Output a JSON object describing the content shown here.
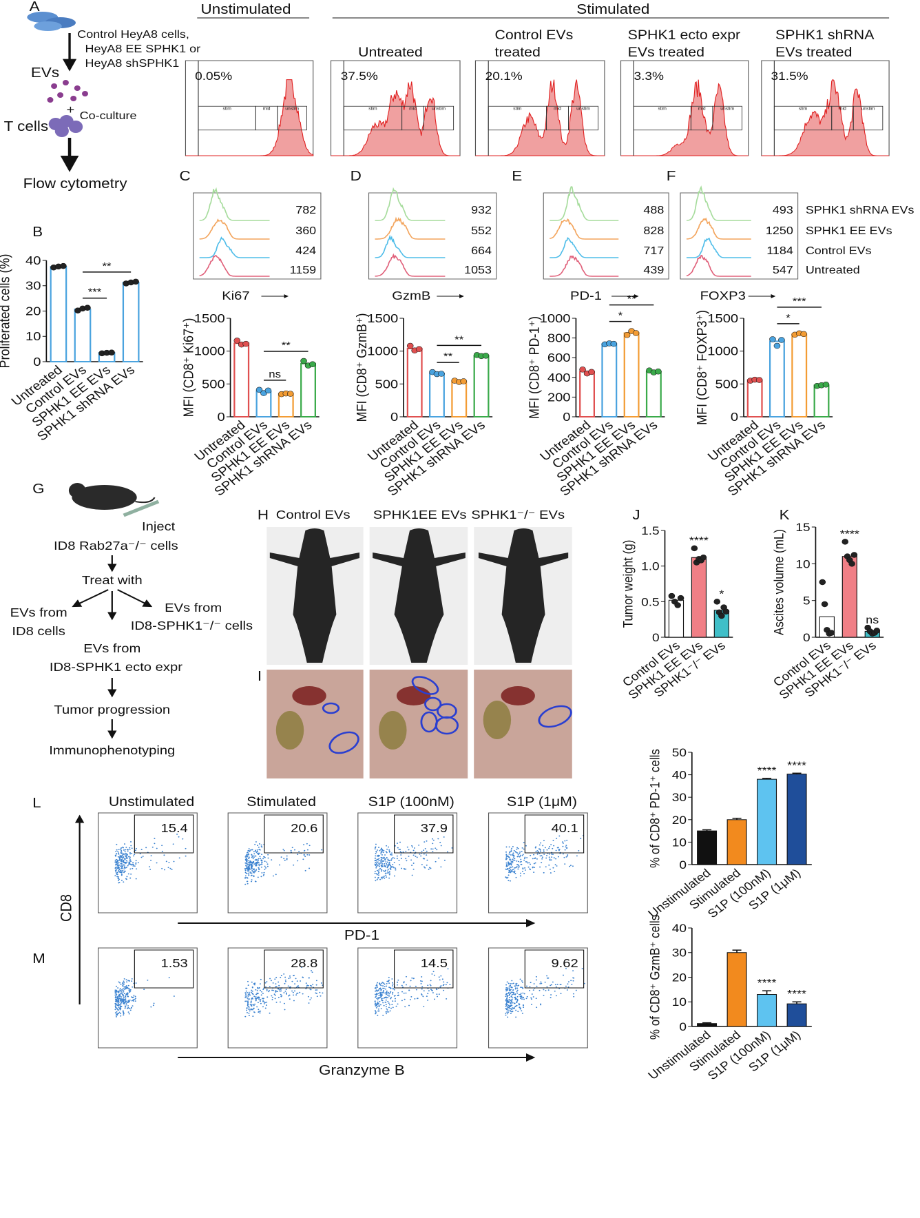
{
  "panel_labels": [
    "A",
    "B",
    "C",
    "D",
    "E",
    "F",
    "G",
    "H",
    "I",
    "J",
    "K",
    "L",
    "M"
  ],
  "panel_a": {
    "schematic": [
      "Control HeyA8 cells,",
      "HeyA8 EE SPHK1 or",
      "HeyA8 shSPHK1",
      "EVs",
      "+",
      "Co-culture",
      "T cells",
      "Flow cytometry"
    ],
    "groups": [
      "Unstimulated",
      "Stimulated"
    ],
    "gate_names": [
      "stim",
      "mid",
      "unstim"
    ],
    "histograms": [
      {
        "gate": "0.05%"
      },
      {
        "title": [
          "Untreated"
        ],
        "gate": "37.5%"
      },
      {
        "title": [
          "Control EVs",
          "treated"
        ],
        "gate": "20.1%"
      },
      {
        "title": [
          "SPHK1 ecto expr",
          "EVs treated"
        ],
        "gate": "3.3%"
      },
      {
        "title": [
          "SPHK1 shRNA",
          "EVs treated"
        ],
        "gate": "31.5%"
      }
    ]
  },
  "panel_cf": {
    "series": [
      {
        "name": "SPHK1 shRNA EVs",
        "color": "#a6dc9c"
      },
      {
        "name": "SPHK1 EE EVs",
        "color": "#f3a45c"
      },
      {
        "name": "Control EVs",
        "color": "#4fbde9"
      },
      {
        "name": "Untreated",
        "color": "#e0607a"
      }
    ],
    "panels": [
      {
        "marker": "Ki67",
        "values": [
          782,
          360,
          424,
          1159
        ]
      },
      {
        "marker": "GzmB",
        "values": [
          932,
          552,
          664,
          1053
        ]
      },
      {
        "marker": "PD-1",
        "values": [
          488,
          828,
          717,
          439
        ]
      },
      {
        "marker": "FOXP3",
        "values": [
          493,
          1250,
          1184,
          547
        ]
      }
    ]
  },
  "panel_g": {
    "inject": "Inject",
    "cells": "ID8 Rab27a⁻/⁻ cells",
    "treat": "Treat with",
    "left": [
      "EVs from",
      "ID8 cells"
    ],
    "right": [
      "EVs from",
      "ID8-SPHK1⁻/⁻ cells"
    ],
    "middle": [
      "EVs from",
      "ID8-SPHK1 ecto expr"
    ],
    "progression": "Tumor progression",
    "final": "Immunophenotyping"
  },
  "panel_h": {
    "columns": [
      "Control EVs",
      "SPHK1EE EVs",
      "SPHK1⁻/⁻ EVs"
    ]
  },
  "flow": {
    "columns": [
      "Unstimulated",
      "Stimulated",
      "S1P (100nM)",
      "S1P (1μM)"
    ],
    "y_axis": "CD8",
    "rows": [
      {
        "x_axis": "PD-1",
        "values": [
          15.4,
          20.6,
          37.9,
          40.1
        ]
      },
      {
        "x_axis": "Granzyme B",
        "values": [
          1.53,
          28.8,
          14.5,
          9.62
        ]
      }
    ]
  },
  "chart_data": [
    {
      "type": "bar",
      "style": "outline",
      "ylabel": "Proliferated cells (%)",
      "categories": [
        "Untreated",
        "Control EVs",
        "SPHK1 EE EVs",
        "SPHK1 shRNA EVs"
      ],
      "values": [
        37.5,
        20.7,
        3.5,
        31.3
      ],
      "colors": [
        "#4aa3df",
        "#4aa3df",
        "#4aa3df",
        "#4aa3df"
      ],
      "point_color": "#222",
      "points": [
        [
          37.2,
          37.6,
          37.8
        ],
        [
          20.2,
          21,
          21.3
        ],
        [
          3.3,
          3.5,
          3.6
        ],
        [
          30.9,
          31.3,
          31.6
        ]
      ],
      "ylim": [
        0,
        40
      ],
      "yticks": [
        0,
        10,
        20,
        30,
        40
      ],
      "comparisons": [
        {
          "label": "***",
          "between": [
            "Control EVs",
            "SPHK1 EE EVs"
          ]
        },
        {
          "label": "**",
          "between": [
            "Control EVs",
            "SPHK1 shRNA EVs"
          ]
        }
      ]
    },
    {
      "type": "bar",
      "style": "outline",
      "ylabel": "MFI (CD8⁺ Ki67⁺)",
      "categories": [
        "Untreated",
        "Control EVs",
        "SPHK1 EE EVs",
        "SPHK1 shRNA EVs"
      ],
      "values": [
        1120,
        390,
        350,
        810
      ],
      "colors": [
        "#e05050",
        "#4aa3df",
        "#f39c34",
        "#3aaa4a"
      ],
      "points": [
        [
          1160,
          1100,
          1110
        ],
        [
          410,
          360,
          400
        ],
        [
          345,
          355,
          350
        ],
        [
          850,
          780,
          800
        ]
      ],
      "ylim": [
        0,
        1500
      ],
      "yticks": [
        0,
        500,
        1000,
        1500
      ],
      "comparisons": [
        {
          "label": "ns",
          "between": [
            "Control EVs",
            "SPHK1 EE EVs"
          ]
        },
        {
          "label": "**",
          "between": [
            "Control EVs",
            "SPHK1 shRNA EVs"
          ]
        }
      ]
    },
    {
      "type": "bar",
      "style": "outline",
      "ylabel": "MFI (CD8⁺ GzmB⁺)",
      "categories": [
        "Untreated",
        "Control EVs",
        "SPHK1 EE EVs",
        "SPHK1 shRNA EVs"
      ],
      "values": [
        1040,
        660,
        540,
        930
      ],
      "colors": [
        "#e05050",
        "#4aa3df",
        "#f39c34",
        "#3aaa4a"
      ],
      "points": [
        [
          1080,
          1010,
          1030
        ],
        [
          680,
          650,
          655
        ],
        [
          550,
          530,
          540
        ],
        [
          940,
          925,
          930
        ]
      ],
      "ylim": [
        0,
        1500
      ],
      "yticks": [
        0,
        500,
        1000,
        1500
      ],
      "comparisons": [
        {
          "label": "**",
          "between": [
            "Control EVs",
            "SPHK1 EE EVs"
          ]
        },
        {
          "label": "**",
          "between": [
            "Control EVs",
            "SPHK1 shRNA EVs"
          ]
        }
      ]
    },
    {
      "type": "bar",
      "style": "outline",
      "ylabel": "MFI (CD8⁺ PD-1⁺)",
      "categories": [
        "Untreated",
        "Control EVs",
        "SPHK1 EE EVs",
        "SPHK1 shRNA EVs"
      ],
      "values": [
        460,
        740,
        850,
        460
      ],
      "colors": [
        "#e05050",
        "#4aa3df",
        "#f39c34",
        "#3aaa4a"
      ],
      "points": [
        [
          480,
          440,
          455
        ],
        [
          735,
          745,
          740
        ],
        [
          830,
          870,
          850
        ],
        [
          470,
          450,
          460
        ]
      ],
      "ylim": [
        0,
        1000
      ],
      "yticks": [
        0,
        200,
        400,
        600,
        800,
        1000
      ],
      "comparisons": [
        {
          "label": "*",
          "between": [
            "Control EVs",
            "SPHK1 EE EVs"
          ]
        },
        {
          "label": "**",
          "between": [
            "Control EVs",
            "SPHK1 shRNA EVs"
          ]
        }
      ]
    },
    {
      "type": "bar",
      "style": "outline",
      "ylabel": "MFI (CD8⁺ FOXP3⁺)",
      "categories": [
        "Untreated",
        "Control EVs",
        "SPHK1 EE EVs",
        "SPHK1 shRNA EVs"
      ],
      "values": [
        560,
        1150,
        1260,
        480
      ],
      "colors": [
        "#e05050",
        "#4aa3df",
        "#f39c34",
        "#3aaa4a"
      ],
      "points": [
        [
          550,
          565,
          560
        ],
        [
          1180,
          1080,
          1170
        ],
        [
          1250,
          1270,
          1260
        ],
        [
          470,
          480,
          490
        ]
      ],
      "ylim": [
        0,
        1500
      ],
      "yticks": [
        0,
        500,
        1000,
        1500
      ],
      "comparisons": [
        {
          "label": "*",
          "between": [
            "Control EVs",
            "SPHK1 EE EVs"
          ]
        },
        {
          "label": "***",
          "between": [
            "Control EVs",
            "SPHK1 shRNA EVs"
          ]
        }
      ]
    },
    {
      "type": "bar",
      "style": "filled",
      "ylabel": "Tumor weight (g)",
      "categories": [
        "Control EVs",
        "SPHK1 EE EVs",
        "SPHK1⁻/⁻ EVs"
      ],
      "values": [
        0.52,
        1.12,
        0.38
      ],
      "colors": [
        "#ffffff",
        "#f07f86",
        "#40bfc8"
      ],
      "point_color": "#222",
      "points": [
        [
          0.58,
          0.5,
          0.45,
          0.55
        ],
        [
          1.25,
          1.05,
          1.1,
          1.08,
          1.12
        ],
        [
          0.5,
          0.35,
          0.3,
          0.42,
          0.36
        ]
      ],
      "ylim": [
        0,
        1.5
      ],
      "yticks": [
        0,
        0.5,
        {
          "value": 1,
          "label": "1.0"
        },
        1.5
      ],
      "annotations": [
        null,
        "****",
        "*"
      ]
    },
    {
      "type": "bar",
      "style": "filled",
      "ylabel": "Ascites volume (mL)",
      "categories": [
        "Control EVs",
        "SPHK1 EE EVs",
        "SPHK1⁻/⁻ EVs"
      ],
      "values": [
        2.8,
        11,
        0.8
      ],
      "colors": [
        "#ffffff",
        "#f07f86",
        "#40bfc8"
      ],
      "point_color": "#222",
      "points": [
        [
          7.5,
          4.5,
          1,
          0.5,
          0.6
        ],
        [
          13,
          11,
          10.5,
          10,
          11.2
        ],
        [
          1.3,
          0.8,
          0.5,
          0.6,
          0.9
        ]
      ],
      "ylim": [
        0,
        15
      ],
      "yticks": [
        0,
        5,
        10,
        15
      ],
      "annotations": [
        null,
        "****",
        "ns"
      ]
    },
    {
      "type": "bar",
      "style": "filled",
      "ylabel": "% of CD8⁺ PD-1⁺ cells",
      "categories": [
        "Unstimulated",
        "Stimulated",
        "S1P (100nM)",
        "S1P (1μM)"
      ],
      "values": [
        15,
        20,
        38,
        40.3
      ],
      "errors": [
        0.5,
        0.6,
        0.4,
        0.4
      ],
      "colors": [
        "#111111",
        "#f28a1e",
        "#5ec3f0",
        "#1f4e9a"
      ],
      "ylim": [
        0,
        50
      ],
      "yticks": [
        0,
        10,
        20,
        30,
        40,
        50
      ],
      "annotations": [
        null,
        null,
        "****",
        "****"
      ]
    },
    {
      "type": "bar",
      "style": "filled",
      "ylabel": "% of CD8⁺ GzmB⁺ cells",
      "categories": [
        "Unstimulated",
        "Stimulated",
        "S1P (100nM)",
        "S1P (1μM)"
      ],
      "values": [
        1.2,
        30,
        13,
        9.2
      ],
      "errors": [
        0.3,
        1,
        1.5,
        0.8
      ],
      "colors": [
        "#111111",
        "#f28a1e",
        "#5ec3f0",
        "#1f4e9a"
      ],
      "ylim": [
        0,
        40
      ],
      "yticks": [
        0,
        10,
        20,
        30,
        40
      ],
      "annotations": [
        null,
        null,
        "****",
        "****"
      ]
    }
  ]
}
